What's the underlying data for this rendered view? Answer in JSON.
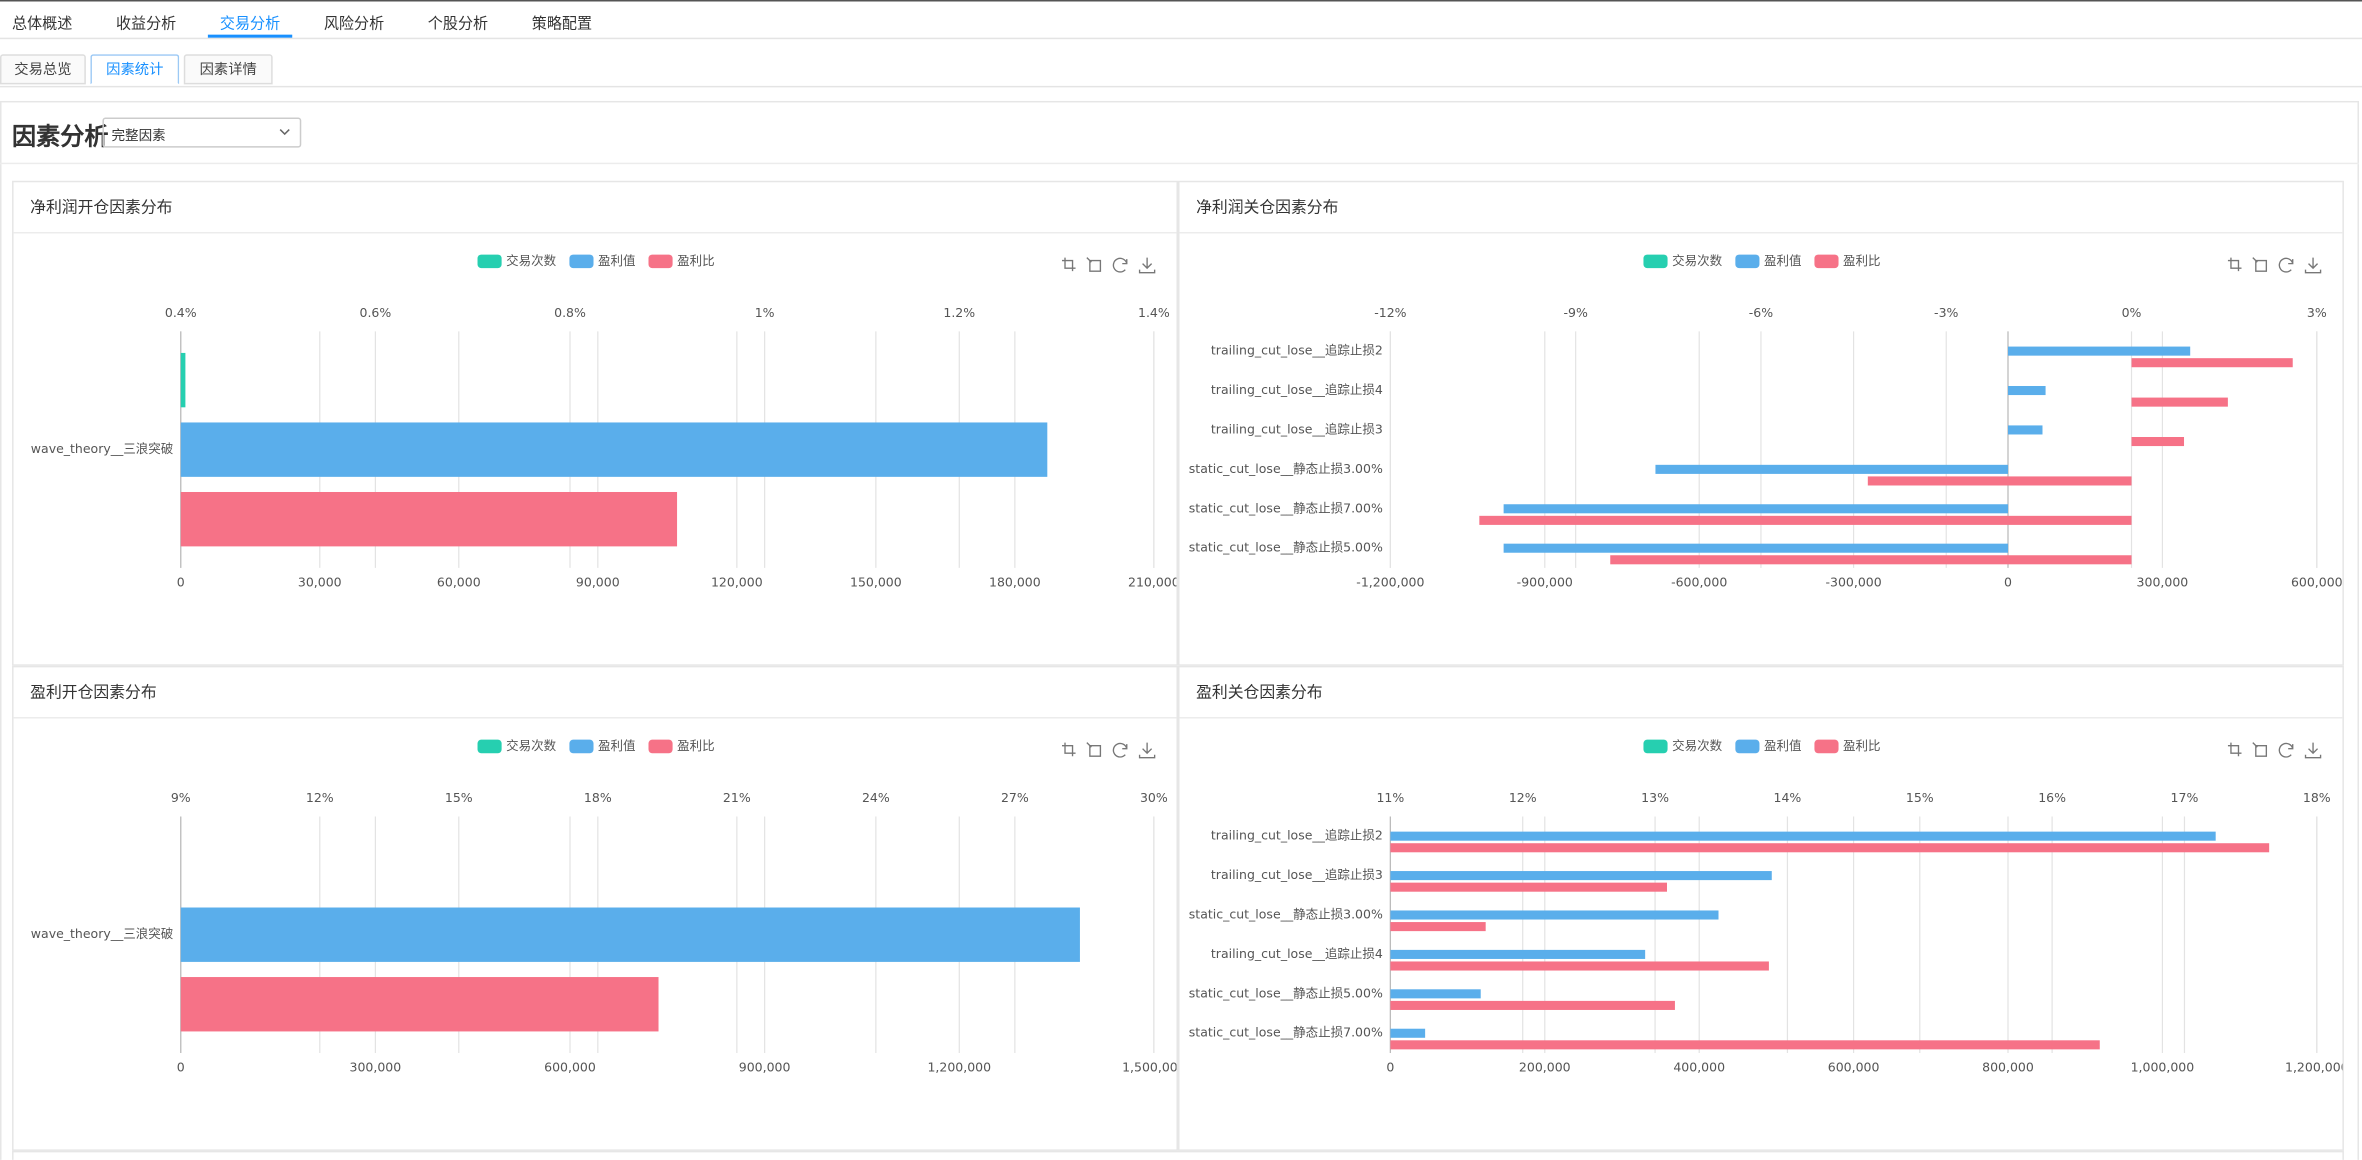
{
  "nav": {
    "tabs": [
      "总体概述",
      "收益分析",
      "交易分析",
      "风险分析",
      "个股分析",
      "策略配置"
    ]
  },
  "subtabs": [
    "交易总览",
    "因素统计",
    "因素详情"
  ],
  "header": {
    "title": "因素分析",
    "select": "完整因素"
  },
  "chart_data": [
    {
      "type": "bar",
      "orientation": "horizontal",
      "title": "净利润开仓因素分布",
      "categories": [
        "wave_theory__三浪突破"
      ],
      "series": [
        {
          "name": "交易次数",
          "color": "#26cfb0",
          "values": [
            1000
          ]
        },
        {
          "name": "盈利值",
          "color": "#5aaeeb",
          "values": [
            187000
          ]
        },
        {
          "name": "盈利比",
          "color": "#f67287",
          "values": [
            0.91
          ],
          "axis": "x2"
        }
      ],
      "xlim": [
        0,
        210000
      ],
      "xticks": [
        0,
        {
          "value": 30000,
          "label": "30,000"
        },
        {
          "value": 60000,
          "label": "60,000"
        },
        {
          "value": 90000,
          "label": "90,000"
        },
        {
          "value": 120000,
          "label": "120,000"
        },
        {
          "value": 150000,
          "label": "150,000"
        },
        {
          "value": 180000,
          "label": "180,000"
        },
        {
          "value": 210000,
          "label": "210,000"
        }
      ],
      "x2lim": [
        0.4,
        1.4
      ],
      "x2ticks": [
        {
          "value": 0.4,
          "label": "0.4%"
        },
        {
          "value": 0.6,
          "label": "0.6%"
        },
        {
          "value": 0.8,
          "label": "0.8%"
        },
        {
          "value": 1,
          "label": "1%"
        },
        {
          "value": 1.2,
          "label": "1.2%"
        },
        {
          "value": 1.4,
          "label": "1.4%"
        }
      ],
      "grid": true
    },
    {
      "type": "bar",
      "orientation": "horizontal",
      "title": "净利润关仓因素分布",
      "categories": [
        "trailing_cut_lose__追踪止损2",
        "trailing_cut_lose__追踪止损4",
        "trailing_cut_lose__追踪止损3",
        "static_cut_lose__静态止损3.00%",
        "static_cut_lose__静态止损7.00%",
        "static_cut_lose__静态止损5.00%"
      ],
      "series": [
        {
          "name": "交易次数",
          "color": "#26cfb0",
          "values": [
            null,
            null,
            null,
            null,
            null,
            null
          ]
        },
        {
          "name": "盈利值",
          "color": "#5aaeeb",
          "values": [
            354000,
            73000,
            67000,
            -685000,
            -980000,
            -980000
          ]
        },
        {
          "name": "盈利比",
          "color": "#f67287",
          "values": [
            2.61,
            1.56,
            0.85,
            -4.27,
            -10.56,
            -8.44
          ],
          "axis": "x2"
        }
      ],
      "xlim": [
        -1200000,
        600000
      ],
      "xticks": [
        {
          "value": -1200000,
          "label": "-1,200,000"
        },
        {
          "value": -900000,
          "label": "-900,000"
        },
        {
          "value": -600000,
          "label": "-600,000"
        },
        {
          "value": -300000,
          "label": "-300,000"
        },
        0,
        {
          "value": 300000,
          "label": "300,000"
        },
        {
          "value": 600000,
          "label": "600,000"
        }
      ],
      "x2lim": [
        -12,
        3
      ],
      "x2ticks": [
        {
          "value": -12,
          "label": "-12%"
        },
        {
          "value": -9,
          "label": "-9%"
        },
        {
          "value": -6,
          "label": "-6%"
        },
        {
          "value": -3,
          "label": "-3%"
        },
        {
          "value": 0,
          "label": "0%"
        },
        {
          "value": 3,
          "label": "3%"
        }
      ],
      "grid": true
    },
    {
      "type": "bar",
      "orientation": "horizontal",
      "title": "盈利开仓因素分布",
      "categories": [
        "wave_theory__三浪突破"
      ],
      "series": [
        {
          "name": "交易次数",
          "color": "#26cfb0",
          "values": [
            null
          ]
        },
        {
          "name": "盈利值",
          "color": "#5aaeeb",
          "values": [
            1386000
          ]
        },
        {
          "name": "盈利比",
          "color": "#f67287",
          "values": [
            19.31
          ],
          "axis": "x2"
        }
      ],
      "xlim": [
        0,
        1500000
      ],
      "xticks": [
        0,
        {
          "value": 300000,
          "label": "300,000"
        },
        {
          "value": 600000,
          "label": "600,000"
        },
        {
          "value": 900000,
          "label": "900,000"
        },
        {
          "value": 1200000,
          "label": "1,200,000"
        },
        {
          "value": 1500000,
          "label": "1,500,000"
        }
      ],
      "x2lim": [
        9,
        30
      ],
      "x2ticks": [
        {
          "value": 9,
          "label": "9%"
        },
        {
          "value": 12,
          "label": "12%"
        },
        {
          "value": 15,
          "label": "15%"
        },
        {
          "value": 18,
          "label": "18%"
        },
        {
          "value": 21,
          "label": "21%"
        },
        {
          "value": 24,
          "label": "24%"
        },
        {
          "value": 27,
          "label": "27%"
        },
        {
          "value": 30,
          "label": "30%"
        }
      ],
      "grid": true
    },
    {
      "type": "bar",
      "orientation": "horizontal",
      "title": "盈利关仓因素分布",
      "categories": [
        "trailing_cut_lose__追踪止损2",
        "trailing_cut_lose__追踪止损3",
        "static_cut_lose__静态止损3.00%",
        "trailing_cut_lose__追踪止损4",
        "static_cut_lose__静态止损5.00%",
        "static_cut_lose__静态止损7.00%"
      ],
      "series": [
        {
          "name": "交易次数",
          "color": "#26cfb0",
          "values": [
            null,
            null,
            null,
            null,
            null,
            null
          ]
        },
        {
          "name": "盈利值",
          "color": "#5aaeeb",
          "values": [
            1069000,
            494000,
            425000,
            330000,
            117000,
            45000
          ]
        },
        {
          "name": "盈利比",
          "color": "#f67287",
          "values": [
            17.64,
            13.09,
            11.72,
            13.86,
            13.15,
            16.36
          ],
          "axis": "x2"
        }
      ],
      "xlim": [
        0,
        1200000
      ],
      "xticks": [
        0,
        {
          "value": 200000,
          "label": "200,000"
        },
        {
          "value": 400000,
          "label": "400,000"
        },
        {
          "value": 600000,
          "label": "600,000"
        },
        {
          "value": 800000,
          "label": "800,000"
        },
        {
          "value": 1000000,
          "label": "1,000,000"
        },
        {
          "value": 1200000,
          "label": "1,200,000"
        }
      ],
      "x2lim": [
        11,
        18
      ],
      "x2ticks": [
        {
          "value": 11,
          "label": "11%"
        },
        {
          "value": 12,
          "label": "12%"
        },
        {
          "value": 13,
          "label": "13%"
        },
        {
          "value": 14,
          "label": "14%"
        },
        {
          "value": 15,
          "label": "15%"
        },
        {
          "value": 16,
          "label": "16%"
        },
        {
          "value": 17,
          "label": "17%"
        },
        {
          "value": 18,
          "label": "18%"
        }
      ],
      "grid": true
    }
  ]
}
